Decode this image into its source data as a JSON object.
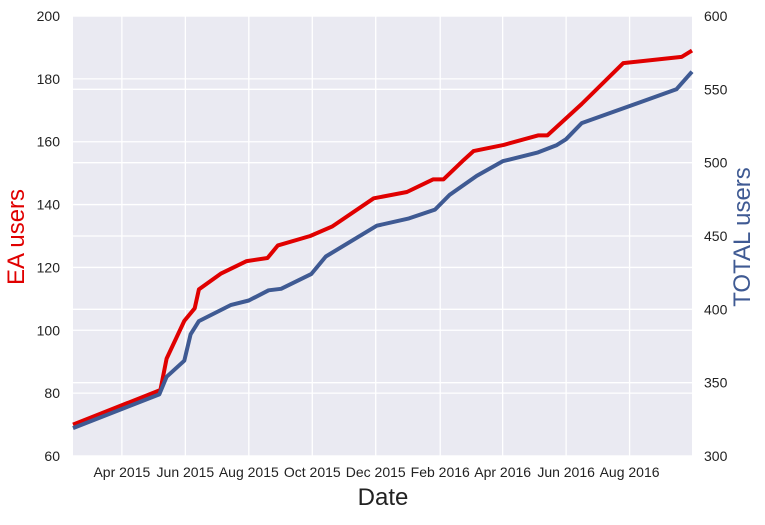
{
  "chart_data": {
    "type": "line",
    "xlabel": "Date",
    "ylabel_left": "EA users",
    "ylabel_right": "TOTAL users",
    "xlim": [
      "2015-02-13",
      "2016-09-30"
    ],
    "ylim_left": [
      60,
      200
    ],
    "ylim_right": [
      300,
      600
    ],
    "grid": true,
    "colors": {
      "background": "#eaeaf2",
      "grid": "#ffffff",
      "ea": "#e00000",
      "total": "#3f5a93",
      "label_left": "#e00000",
      "label_right": "#3f5a93"
    },
    "x_ticks": [
      {
        "date": "2015-04-01",
        "label": "Apr 2015"
      },
      {
        "date": "2015-06-01",
        "label": "Jun 2015"
      },
      {
        "date": "2015-08-01",
        "label": "Aug 2015"
      },
      {
        "date": "2015-10-01",
        "label": "Oct 2015"
      },
      {
        "date": "2015-12-01",
        "label": "Dec 2015"
      },
      {
        "date": "2016-02-01",
        "label": "Feb 2016"
      },
      {
        "date": "2016-04-01",
        "label": "Apr 2016"
      },
      {
        "date": "2016-06-01",
        "label": "Jun 2016"
      },
      {
        "date": "2016-08-01",
        "label": "Aug 2016"
      }
    ],
    "y_left_ticks": [
      "60",
      "80",
      "100",
      "120",
      "140",
      "160",
      "180",
      "200"
    ],
    "y_right_ticks": [
      "300",
      "350",
      "400",
      "450",
      "500",
      "550",
      "600"
    ],
    "series": [
      {
        "name": "EA users",
        "axis": "left",
        "points": [
          [
            "2015-02-13",
            70
          ],
          [
            "2015-05-08",
            81
          ],
          [
            "2015-05-14",
            91
          ],
          [
            "2015-05-31",
            103
          ],
          [
            "2015-06-10",
            107
          ],
          [
            "2015-06-14",
            113
          ],
          [
            "2015-07-05",
            118
          ],
          [
            "2015-07-30",
            122
          ],
          [
            "2015-08-19",
            123
          ],
          [
            "2015-08-29",
            127
          ],
          [
            "2015-09-29",
            130
          ],
          [
            "2015-10-20",
            133
          ],
          [
            "2015-11-29",
            142
          ],
          [
            "2015-12-31",
            144
          ],
          [
            "2016-01-25",
            148
          ],
          [
            "2016-02-04",
            148
          ],
          [
            "2016-02-23",
            154
          ],
          [
            "2016-03-04",
            157
          ],
          [
            "2016-04-02",
            159
          ],
          [
            "2016-05-05",
            162
          ],
          [
            "2016-05-14",
            162
          ],
          [
            "2016-06-16",
            172
          ],
          [
            "2016-07-26",
            185
          ],
          [
            "2016-09-20",
            187
          ],
          [
            "2016-09-30",
            189
          ]
        ]
      },
      {
        "name": "TOTAL users",
        "axis": "right",
        "points": [
          [
            "2015-02-13",
            319
          ],
          [
            "2015-05-07",
            342
          ],
          [
            "2015-05-14",
            354
          ],
          [
            "2015-05-31",
            365
          ],
          [
            "2015-06-06",
            383
          ],
          [
            "2015-06-14",
            392
          ],
          [
            "2015-07-15",
            403
          ],
          [
            "2015-08-01",
            406
          ],
          [
            "2015-08-20",
            413
          ],
          [
            "2015-09-01",
            414
          ],
          [
            "2015-09-30",
            424
          ],
          [
            "2015-10-14",
            436
          ],
          [
            "2015-12-02",
            457
          ],
          [
            "2016-01-02",
            462
          ],
          [
            "2016-01-27",
            468
          ],
          [
            "2016-02-10",
            478
          ],
          [
            "2016-03-07",
            491
          ],
          [
            "2016-04-01",
            501
          ],
          [
            "2016-05-05",
            507
          ],
          [
            "2016-05-23",
            512
          ],
          [
            "2016-06-01",
            516
          ],
          [
            "2016-06-16",
            527
          ],
          [
            "2016-09-15",
            550
          ],
          [
            "2016-09-30",
            562
          ]
        ]
      }
    ]
  }
}
